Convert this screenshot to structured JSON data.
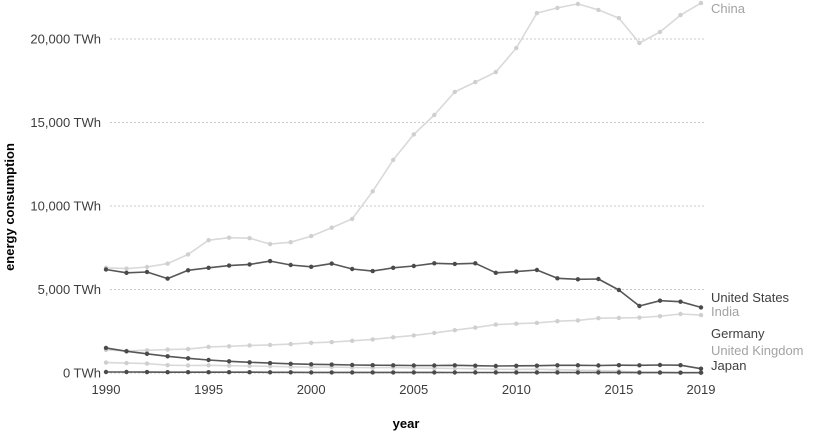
{
  "chart_data": {
    "type": "line",
    "title": "",
    "xlabel": "year",
    "ylabel": "energy consumption",
    "unit": "TWh",
    "xlim": [
      1990,
      2019
    ],
    "ylim": [
      0,
      22300
    ],
    "grid": "horizontal-dotted",
    "legend_position": "right-edge-labels",
    "x": [
      1990,
      1991,
      1992,
      1993,
      1994,
      1995,
      1996,
      1997,
      1998,
      1999,
      2000,
      2001,
      2002,
      2003,
      2004,
      2005,
      2006,
      2007,
      2008,
      2009,
      2010,
      2011,
      2012,
      2013,
      2014,
      2015,
      2016,
      2017,
      2018,
      2019
    ],
    "x_ticks": [
      {
        "value": 1990,
        "label": "1990"
      },
      {
        "value": 1995,
        "label": "1995"
      },
      {
        "value": 2000,
        "label": "2000"
      },
      {
        "value": 2005,
        "label": "2005"
      },
      {
        "value": 2010,
        "label": "2010"
      },
      {
        "value": 2015,
        "label": "2015"
      },
      {
        "value": 2019,
        "label": "2019"
      }
    ],
    "y_ticks": [
      {
        "value": 0,
        "label": "0 TWh"
      },
      {
        "value": 5000,
        "label": "5,000 TWh"
      },
      {
        "value": 10000,
        "label": "10,000 TWh"
      },
      {
        "value": 15000,
        "label": "15,000 TWh"
      },
      {
        "value": 20000,
        "label": "20,000 TWh"
      }
    ],
    "series": [
      {
        "name": "China",
        "shade": "light",
        "values": [
          6300,
          6250,
          6350,
          6550,
          7100,
          7950,
          8100,
          8070,
          7720,
          7830,
          8200,
          8700,
          9230,
          10880,
          12760,
          14290,
          15450,
          16830,
          17420,
          18020,
          19460,
          21550,
          21860,
          22100,
          21740,
          21250,
          19760,
          20420,
          21430,
          22150
        ]
      },
      {
        "name": "United States",
        "shade": "dark",
        "values": [
          6200,
          6000,
          6050,
          5650,
          6150,
          6300,
          6430,
          6500,
          6700,
          6470,
          6360,
          6550,
          6230,
          6100,
          6300,
          6410,
          6570,
          6530,
          6570,
          6000,
          6070,
          6170,
          5670,
          5610,
          5630,
          4970,
          4010,
          4330,
          4270,
          3930
        ]
      },
      {
        "name": "India",
        "shade": "light",
        "values": [
          1380,
          1330,
          1360,
          1400,
          1430,
          1560,
          1600,
          1650,
          1680,
          1730,
          1810,
          1850,
          1930,
          2010,
          2140,
          2250,
          2400,
          2560,
          2720,
          2900,
          2950,
          3000,
          3100,
          3150,
          3280,
          3300,
          3320,
          3400,
          3530,
          3470
        ]
      },
      {
        "name": "Germany",
        "shade": "dark",
        "values": [
          1500,
          1300,
          1150,
          1000,
          880,
          780,
          700,
          640,
          590,
          550,
          520,
          500,
          480,
          470,
          460,
          450,
          450,
          460,
          440,
          420,
          430,
          440,
          460,
          460,
          450,
          470,
          460,
          480,
          470,
          260
        ]
      },
      {
        "name": "United Kingdom",
        "shade": "light",
        "values": [
          620,
          590,
          560,
          470,
          450,
          460,
          440,
          420,
          400,
          370,
          350,
          360,
          330,
          320,
          330,
          300,
          290,
          270,
          250,
          230,
          220,
          230,
          200,
          170,
          140,
          110,
          50,
          40,
          30,
          30
        ]
      },
      {
        "name": "Japan",
        "shade": "dark",
        "values": [
          60,
          60,
          55,
          50,
          50,
          50,
          45,
          45,
          40,
          40,
          35,
          35,
          35,
          35,
          35,
          35,
          35,
          30,
          30,
          30,
          30,
          30,
          30,
          30,
          30,
          30,
          25,
          25,
          20,
          20
        ]
      }
    ]
  },
  "colors": {
    "background": "#ffffff",
    "light_line": "#d9d9d9",
    "light_point": "#cfcfcf",
    "dark_line": "#575757",
    "dark_point": "#4a4a4a",
    "light_label": "#a3a3a3",
    "dark_label": "#3f3f3f",
    "grid": "#c8c8c8",
    "axis_text": "#3d3d3d"
  }
}
